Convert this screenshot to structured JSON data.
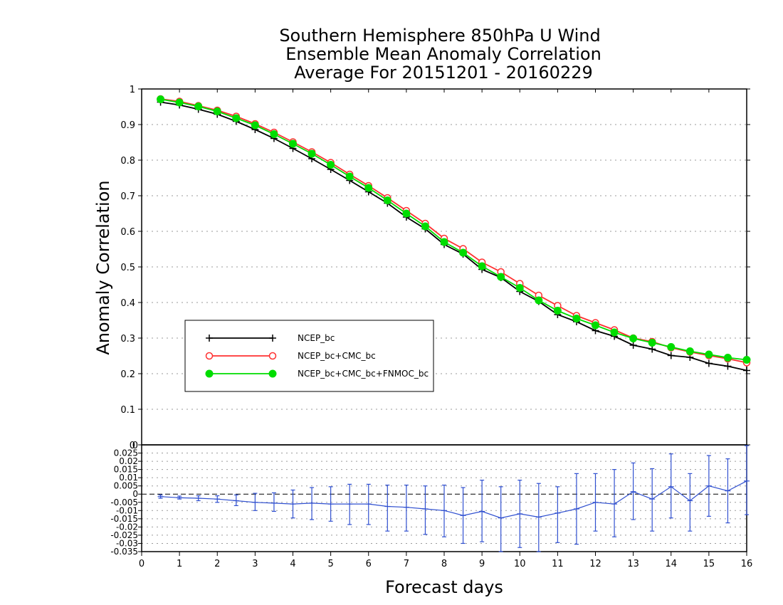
{
  "chart_data": [
    {
      "type": "line",
      "title": [
        "Southern Hemisphere 850hPa U Wind",
        "Ensemble Mean Anomaly Correlation",
        "Average For 20151201 - 20160229"
      ],
      "xlabel": "Forecast days",
      "ylabel": "Anomaly Correlation",
      "xlim": [
        0,
        16
      ],
      "ylim": [
        0,
        1
      ],
      "xticks": [
        0,
        1,
        2,
        3,
        4,
        5,
        6,
        7,
        8,
        9,
        10,
        11,
        12,
        13,
        14,
        15,
        16
      ],
      "yticks": [
        0,
        0.1,
        0.2,
        0.3,
        0.4,
        0.5,
        0.6,
        0.7,
        0.8,
        0.9,
        1
      ],
      "ytick_labels": [
        "0",
        "0.1",
        "0.2",
        "0.3",
        "0.4",
        "0.5",
        "0.6",
        "0.7",
        "0.8",
        "0.9",
        "1"
      ],
      "grid": "horizontal dotted",
      "legend_position": "lower-left",
      "x": [
        0.5,
        1,
        1.5,
        2,
        2.5,
        3,
        3.5,
        4,
        4.5,
        5,
        5.5,
        6,
        6.5,
        7,
        7.5,
        8,
        8.5,
        9,
        9.5,
        10,
        10.5,
        11,
        11.5,
        12,
        12.5,
        13,
        13.5,
        14,
        14.5,
        15,
        15.5,
        16
      ],
      "series": [
        {
          "name": "NCEP_bc",
          "color": "#000000",
          "marker": "plus",
          "values": [
            0.963,
            0.955,
            0.943,
            0.929,
            0.909,
            0.886,
            0.861,
            0.833,
            0.804,
            0.774,
            0.743,
            0.711,
            0.679,
            0.64,
            0.607,
            0.563,
            0.536,
            0.493,
            0.47,
            0.431,
            0.403,
            0.366,
            0.346,
            0.321,
            0.305,
            0.28,
            0.269,
            0.251,
            0.246,
            0.229,
            0.221,
            0.209
          ]
        },
        {
          "name": "NCEP_bc+CMC_bc",
          "color": "#ff3030",
          "marker": "open-circle",
          "values": [
            0.972,
            0.965,
            0.953,
            0.94,
            0.923,
            0.902,
            0.878,
            0.851,
            0.823,
            0.793,
            0.76,
            0.728,
            0.694,
            0.658,
            0.622,
            0.58,
            0.551,
            0.513,
            0.486,
            0.453,
            0.42,
            0.391,
            0.363,
            0.343,
            0.323,
            0.3,
            0.29,
            0.273,
            0.261,
            0.251,
            0.242,
            0.231
          ]
        },
        {
          "name": "NCEP_bc+CMC_bc+FNMOC_bc",
          "color": "#00dd00",
          "marker": "filled-circle",
          "values": [
            0.971,
            0.962,
            0.951,
            0.937,
            0.918,
            0.898,
            0.873,
            0.846,
            0.818,
            0.787,
            0.754,
            0.722,
            0.687,
            0.65,
            0.614,
            0.57,
            0.54,
            0.502,
            0.472,
            0.441,
            0.406,
            0.377,
            0.355,
            0.336,
            0.316,
            0.299,
            0.287,
            0.275,
            0.263,
            0.254,
            0.245,
            0.239
          ]
        }
      ]
    },
    {
      "type": "line",
      "xlim": [
        0,
        16
      ],
      "ylim": [
        -0.035,
        0.03
      ],
      "xticks": [
        0,
        1,
        2,
        3,
        4,
        5,
        6,
        7,
        8,
        9,
        10,
        11,
        12,
        13,
        14,
        15,
        16
      ],
      "yticks": [
        0.025,
        0.02,
        0.015,
        0.01,
        0.005,
        0,
        -0.005,
        -0.01,
        -0.015,
        -0.02,
        -0.025,
        -0.03,
        -0.035
      ],
      "ytick_labels": [
        "0.025",
        "0.02",
        "0.015",
        "0.01",
        "0.005",
        "0",
        "-0.005",
        "-0.01",
        "-0.015",
        "-0.02",
        "-0.025",
        "-0.03",
        "-0.035"
      ],
      "top_label": "0",
      "grid": "horizontal dotted",
      "color": "#3050d0",
      "x": [
        0.5,
        1,
        1.5,
        2,
        2.5,
        3,
        3.5,
        4,
        4.5,
        5,
        5.5,
        6,
        6.5,
        7,
        7.5,
        8,
        8.5,
        9,
        9.5,
        10,
        10.5,
        11,
        11.5,
        12,
        12.5,
        13,
        13.5,
        14,
        14.5,
        15,
        15.5,
        16
      ],
      "values": [
        -0.0015,
        -0.0022,
        -0.0025,
        -0.003,
        -0.004,
        -0.005,
        -0.0055,
        -0.006,
        -0.0055,
        -0.006,
        -0.006,
        -0.006,
        -0.0075,
        -0.008,
        -0.009,
        -0.01,
        -0.013,
        -0.0105,
        -0.0145,
        -0.012,
        -0.014,
        -0.0115,
        -0.009,
        -0.005,
        -0.006,
        0.0015,
        -0.003,
        0.0045,
        -0.004,
        0.005,
        0.002,
        0.008
      ],
      "error_bars": [
        [
          -0.0025,
          -0.0005
        ],
        [
          -0.003,
          -0.0012
        ],
        [
          -0.004,
          -0.001
        ],
        [
          -0.005,
          -0.001
        ],
        [
          -0.007,
          -0.0005
        ],
        [
          -0.01,
          0.0005
        ],
        [
          -0.0105,
          0.0008
        ],
        [
          -0.0145,
          0.0025
        ],
        [
          -0.0155,
          0.004
        ],
        [
          -0.0165,
          0.0045
        ],
        [
          -0.0185,
          0.006
        ],
        [
          -0.0185,
          0.006
        ],
        [
          -0.0225,
          0.0055
        ],
        [
          -0.0225,
          0.0055
        ],
        [
          -0.0245,
          0.005
        ],
        [
          -0.026,
          0.0055
        ],
        [
          -0.03,
          0.004
        ],
        [
          -0.029,
          0.0085
        ],
        [
          -0.035,
          0.0045
        ],
        [
          -0.0325,
          0.0085
        ],
        [
          -0.035,
          0.0065
        ],
        [
          -0.0295,
          0.0045
        ],
        [
          -0.0305,
          0.0125
        ],
        [
          -0.0225,
          0.0125
        ],
        [
          -0.026,
          0.015
        ],
        [
          -0.0155,
          0.019
        ],
        [
          -0.0225,
          0.0155
        ],
        [
          -0.0145,
          0.0245
        ],
        [
          -0.0225,
          0.0125
        ],
        [
          -0.0135,
          0.0235
        ],
        [
          -0.0175,
          0.0215
        ],
        [
          -0.0125,
          0.0295
        ]
      ]
    }
  ]
}
